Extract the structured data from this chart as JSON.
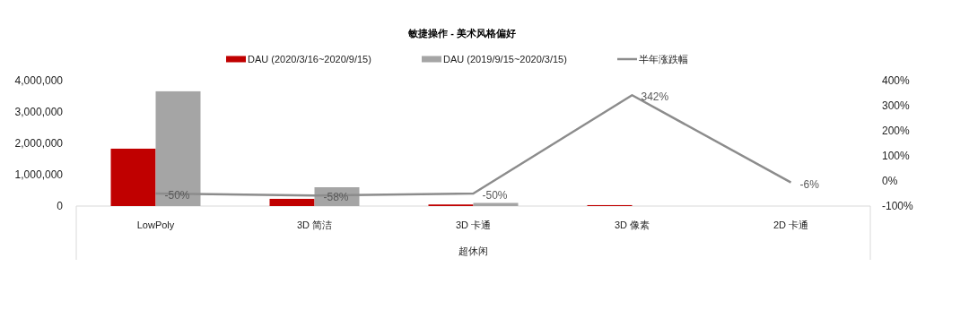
{
  "chart_data": {
    "type": "bar",
    "title": "敏捷操作 - 美术风格偏好",
    "xlabel": "超休闲",
    "categories": [
      "LowPoly",
      "3D 简洁",
      "3D 卡通",
      "3D 像素",
      "2D 卡通"
    ],
    "series": [
      {
        "name": "DAU (2020/3/16~2020/9/15)",
        "color": "#c00000",
        "values": [
          1830000,
          230000,
          50000,
          30000,
          null
        ]
      },
      {
        "name": "DAU (2019/9/15~2020/3/15)",
        "color": "#a5a5a5",
        "values": [
          3660000,
          600000,
          100000,
          null,
          null
        ]
      },
      {
        "name": "半年涨跌幅",
        "type": "line",
        "axis": "y2",
        "color": "#8c8c8c",
        "values": [
          -50,
          -58,
          -50,
          342,
          -6
        ],
        "value_labels": [
          "-50%",
          "-58%",
          "-50%",
          "342%",
          "-6%"
        ]
      }
    ],
    "ylim": [
      0,
      4000000
    ],
    "yticks": [
      {
        "value": 0,
        "label": "0"
      },
      {
        "value": 1000000,
        "label": "1,000,000"
      },
      {
        "value": 2000000,
        "label": "2,000,000"
      },
      {
        "value": 3000000,
        "label": "3,000,000"
      },
      {
        "value": 4000000,
        "label": "4,000,000"
      }
    ],
    "y2lim": [
      -100,
      400
    ],
    "y2ticks": [
      {
        "value": -100,
        "label": "-100%"
      },
      {
        "value": 0,
        "label": "0%"
      },
      {
        "value": 100,
        "label": "100%"
      },
      {
        "value": 200,
        "label": "200%"
      },
      {
        "value": 300,
        "label": "300%"
      },
      {
        "value": 400,
        "label": "400%"
      }
    ],
    "legend": "top",
    "grid": false,
    "marker": "none",
    "line_style": "solid"
  }
}
